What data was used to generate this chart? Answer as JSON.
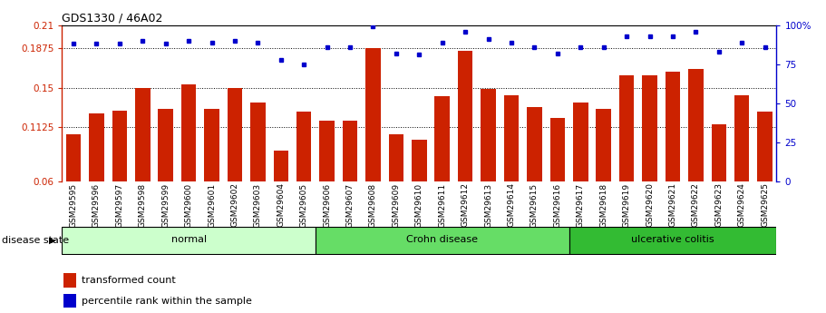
{
  "title": "GDS1330 / 46A02",
  "categories": [
    "GSM29595",
    "GSM29596",
    "GSM29597",
    "GSM29598",
    "GSM29599",
    "GSM29600",
    "GSM29601",
    "GSM29602",
    "GSM29603",
    "GSM29604",
    "GSM29605",
    "GSM29606",
    "GSM29607",
    "GSM29608",
    "GSM29609",
    "GSM29610",
    "GSM29611",
    "GSM29612",
    "GSM29613",
    "GSM29614",
    "GSM29615",
    "GSM29616",
    "GSM29617",
    "GSM29618",
    "GSM29619",
    "GSM29620",
    "GSM29621",
    "GSM29622",
    "GSM29623",
    "GSM29624",
    "GSM29625"
  ],
  "bar_values": [
    0.105,
    0.125,
    0.128,
    0.15,
    0.13,
    0.153,
    0.13,
    0.15,
    0.136,
    0.09,
    0.127,
    0.118,
    0.118,
    0.188,
    0.105,
    0.1,
    0.142,
    0.185,
    0.149,
    0.143,
    0.131,
    0.121,
    0.136,
    0.13,
    0.162,
    0.162,
    0.165,
    0.168,
    0.115,
    0.143,
    0.127
  ],
  "percentile_values": [
    88,
    88,
    88,
    90,
    88,
    90,
    89,
    90,
    89,
    78,
    75,
    86,
    86,
    99,
    82,
    81,
    89,
    96,
    91,
    89,
    86,
    82,
    86,
    86,
    93,
    93,
    93,
    96,
    83,
    89,
    86
  ],
  "bar_color": "#cc2200",
  "dot_color": "#0000cc",
  "ylim_left": [
    0.06,
    0.21
  ],
  "ylim_right": [
    0,
    100
  ],
  "yticks_left": [
    0.06,
    0.1125,
    0.15,
    0.1875,
    0.21
  ],
  "yticks_right": [
    0,
    25,
    50,
    75,
    100
  ],
  "ytick_labels_left": [
    "0.06",
    "0.1125",
    "0.15",
    "0.1875",
    "0.21"
  ],
  "ytick_labels_right": [
    "0",
    "25",
    "50",
    "75",
    "100%"
  ],
  "groups": [
    {
      "label": "normal",
      "start": 0,
      "end": 10,
      "color": "#ccffcc"
    },
    {
      "label": "Crohn disease",
      "start": 11,
      "end": 21,
      "color": "#66dd66"
    },
    {
      "label": "ulcerative colitis",
      "start": 22,
      "end": 30,
      "color": "#33bb33"
    }
  ],
  "disease_state_label": "disease state",
  "legend_bar_label": "transformed count",
  "legend_dot_label": "percentile rank within the sample",
  "background_color": "#ffffff"
}
